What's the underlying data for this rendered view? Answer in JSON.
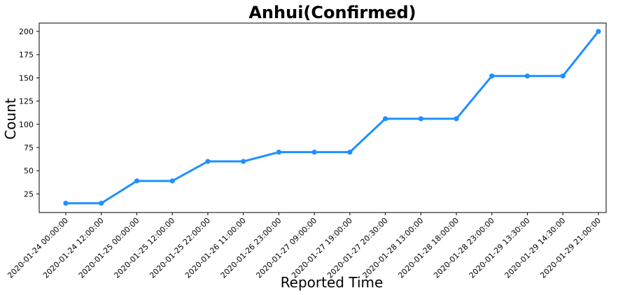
{
  "chart_data": {
    "type": "line",
    "title": "Anhui(Confirmed)",
    "xlabel": "Reported Time",
    "ylabel": "Count",
    "ylim": [
      5,
      209
    ],
    "yticks": [
      25,
      50,
      75,
      100,
      125,
      150,
      175,
      200
    ],
    "grid": false,
    "color": "#1e90ff",
    "categories": [
      "2020-01-24 00:00:00",
      "2020-01-24 12:00:00",
      "2020-01-25 00:00:00",
      "2020-01-25 12:00:00",
      "2020-01-25 22:00:00",
      "2020-01-26 11:00:00",
      "2020-01-26 23:00:00",
      "2020-01-27 09:00:00",
      "2020-01-27 19:00:00",
      "2020-01-27 20:30:00",
      "2020-01-28 13:00:00",
      "2020-01-28 18:00:00",
      "2020-01-28 23:00:00",
      "2020-01-29 13:30:00",
      "2020-01-29 14:30:00",
      "2020-01-29 21:00:00"
    ],
    "values": [
      15,
      15,
      39,
      39,
      60,
      60,
      70,
      70,
      70,
      106,
      106,
      106,
      152,
      152,
      152,
      200
    ]
  }
}
